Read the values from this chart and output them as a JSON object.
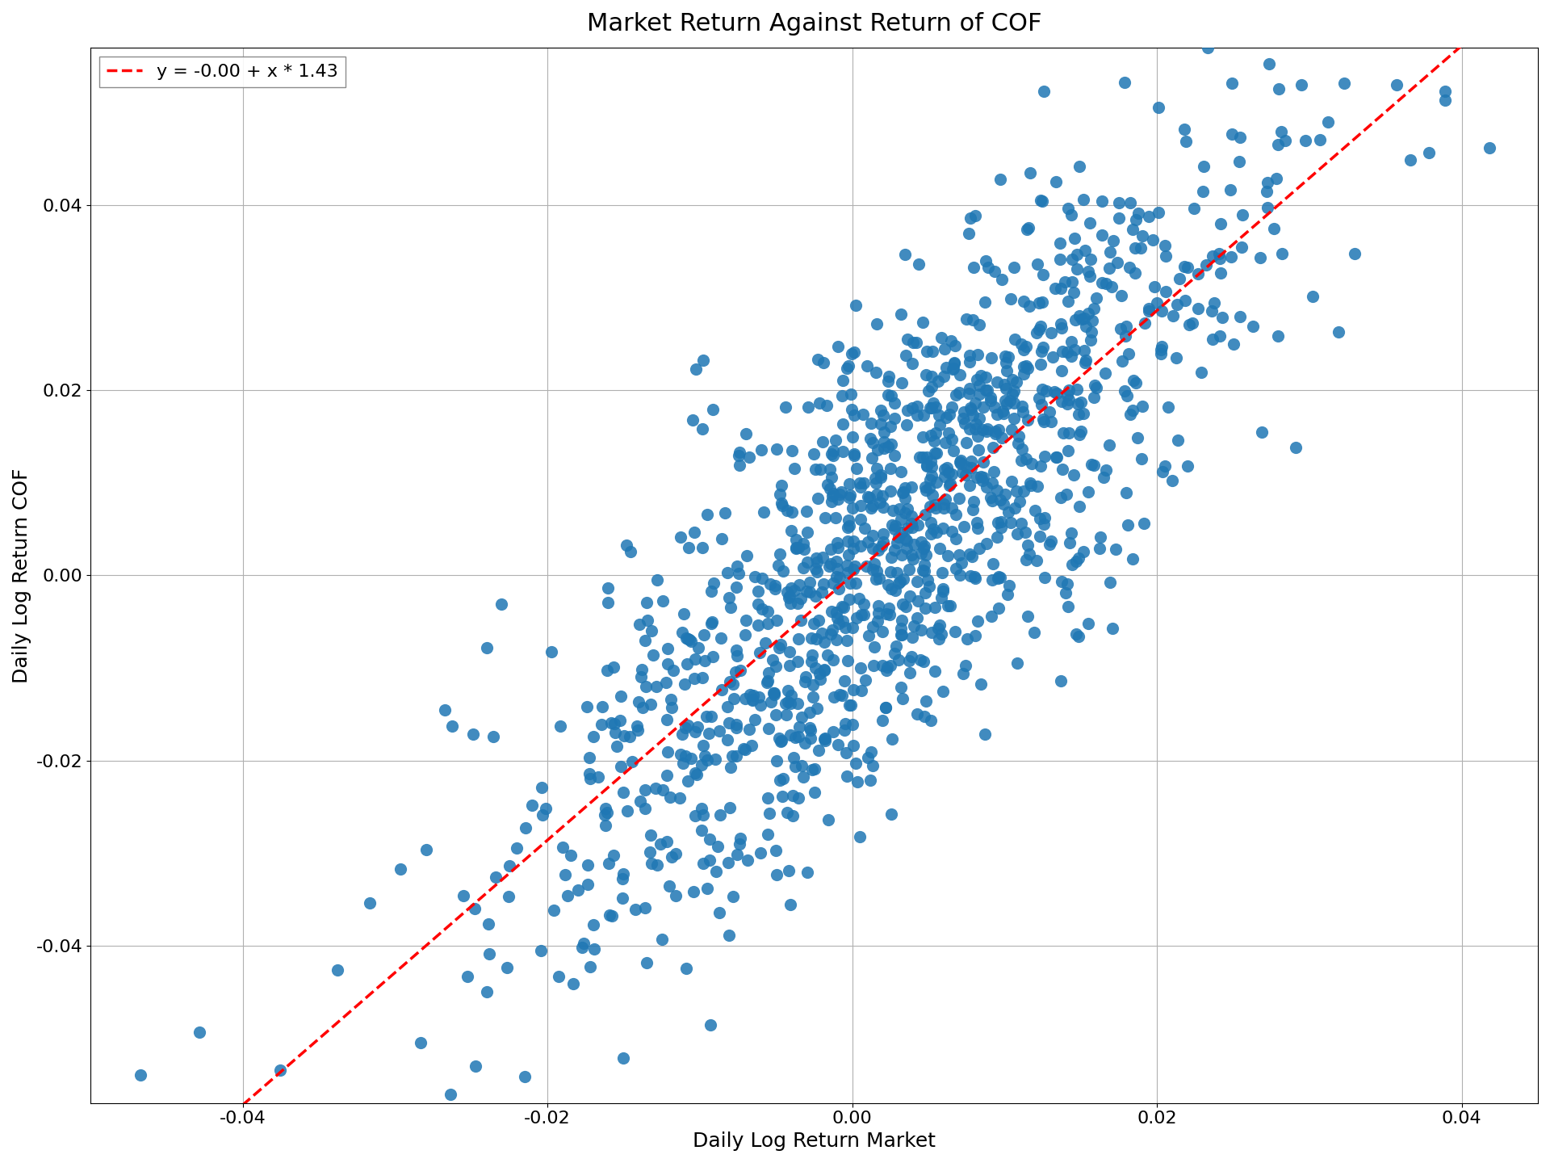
{
  "title": "Market Return Against Return of COF",
  "xlabel": "Daily Log Return Market",
  "ylabel": "Daily Log Return COF",
  "intercept": -0.0,
  "slope": 1.43,
  "legend_label": "y = -0.00 + x * 1.43",
  "dot_color": "#1f77b4",
  "line_color": "#ff0000",
  "dot_size": 120,
  "dot_alpha": 0.85,
  "xlim": [
    -0.05,
    0.045
  ],
  "ylim": [
    -0.057,
    0.057
  ],
  "xticks": [
    -0.04,
    -0.02,
    0.0,
    0.02,
    0.04
  ],
  "yticks": [
    -0.04,
    -0.02,
    0.0,
    0.02,
    0.04
  ],
  "title_fontsize": 22,
  "label_fontsize": 18,
  "tick_fontsize": 16,
  "legend_fontsize": 16,
  "figsize": [
    19.2,
    14.4
  ],
  "dpi": 100,
  "grid": true,
  "grid_color": "#b0b0b0",
  "grid_linewidth": 0.8,
  "n_points": 1258,
  "market_std": 0.0105,
  "noise_std": 0.012,
  "seed": 137
}
